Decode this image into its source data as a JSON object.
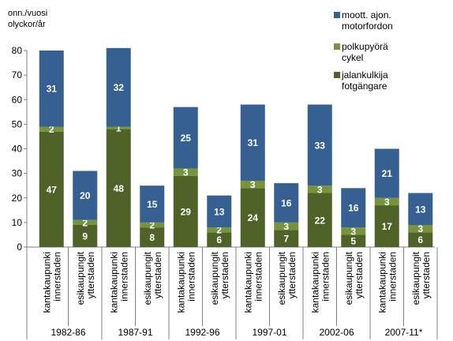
{
  "chart_data": {
    "type": "bar",
    "stacked": true,
    "ylabel": [
      "onn./vuosi",
      "olyckor/år"
    ],
    "ylim": [
      0,
      80
    ],
    "yticks": [
      0,
      10,
      20,
      30,
      40,
      50,
      60,
      70,
      80
    ],
    "grid": false,
    "legend_position": "top-right",
    "groups": [
      "1982-86",
      "1987-91",
      "1992-96",
      "1997-01",
      "2002-06",
      "2007-11*"
    ],
    "subcategories": [
      [
        "kantakaupunki",
        "innerstaden"
      ],
      [
        "esikaupungit",
        "ytterstaden"
      ]
    ],
    "series": [
      {
        "name": [
          "jalankulkija",
          "fotgängare"
        ],
        "color": "#4f6228",
        "values": [
          47,
          9,
          48,
          8,
          29,
          6,
          24,
          7,
          22,
          5,
          17,
          6
        ]
      },
      {
        "name": [
          "polkupyörä",
          "cykel"
        ],
        "color": "#77933c",
        "values": [
          2,
          2,
          1,
          2,
          3,
          2,
          3,
          3,
          3,
          3,
          3,
          3
        ]
      },
      {
        "name": [
          "moott. ajon.",
          "motorfordon"
        ],
        "color": "#376092",
        "values": [
          31,
          20,
          32,
          15,
          25,
          13,
          31,
          16,
          33,
          16,
          21,
          13
        ]
      }
    ],
    "totals": [
      80,
      31,
      81,
      25,
      57,
      21,
      58,
      26,
      58,
      24,
      40,
      22
    ]
  }
}
